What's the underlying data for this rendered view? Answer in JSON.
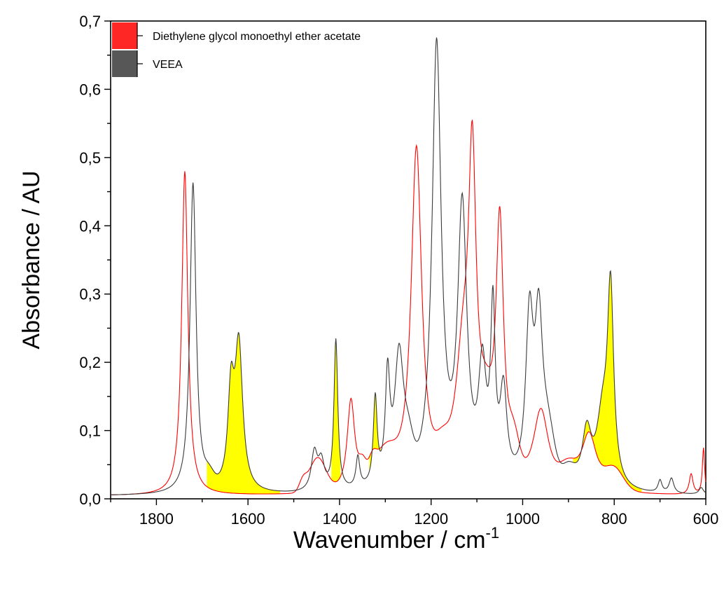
{
  "chart_data": {
    "type": "line",
    "title": "",
    "xlabel": "Wavenumber / cm",
    "xlabel_superscript": "-1",
    "ylabel": "Absorbance / AU",
    "xlim": [
      1900,
      600
    ],
    "x_reversed": true,
    "ylim": [
      0,
      0.7
    ],
    "x_ticks": [
      1800,
      1600,
      1400,
      1200,
      1000,
      800,
      600
    ],
    "x_tick_labels": [
      "1800",
      "1600",
      "1400",
      "1200",
      "1000",
      "800",
      "600"
    ],
    "y_ticks": [
      0,
      0.1,
      0.2,
      0.3,
      0.4,
      0.5,
      0.6,
      0.7
    ],
    "y_tick_labels": [
      "0,0",
      "0,1",
      "0,2",
      "0,3",
      "0,4",
      "0,5",
      "0,6",
      "0,7"
    ],
    "grid": false,
    "legend_position": "top-left",
    "fill_color": "#ffff00",
    "series": [
      {
        "name": "Diethylene glycol monoethyl ether acetate",
        "color": "#ff0000",
        "peaks": [
          {
            "center": 1738,
            "height": 0.475,
            "width": 8,
            "shape": "l"
          },
          {
            "center": 1448,
            "height": 0.05,
            "width": 18,
            "shape": "g"
          },
          {
            "center": 1480,
            "height": 0.015,
            "width": 8,
            "shape": "g"
          },
          {
            "center": 1375,
            "height": 0.135,
            "width": 10,
            "shape": "l"
          },
          {
            "center": 1350,
            "height": 0.025,
            "width": 8,
            "shape": "g"
          },
          {
            "center": 1328,
            "height": 0.02,
            "width": 8,
            "shape": "g"
          },
          {
            "center": 1300,
            "height": 0.05,
            "width": 25,
            "shape": "g"
          },
          {
            "center": 1232,
            "height": 0.5,
            "width": 14,
            "shape": "l"
          },
          {
            "center": 1175,
            "height": 0.03,
            "width": 15,
            "shape": "g"
          },
          {
            "center": 1130,
            "height": 0.18,
            "width": 20,
            "shape": "l"
          },
          {
            "center": 1110,
            "height": 0.43,
            "width": 10,
            "shape": "l"
          },
          {
            "center": 1080,
            "height": 0.08,
            "width": 15,
            "shape": "g"
          },
          {
            "center": 1050,
            "height": 0.38,
            "width": 10,
            "shape": "l"
          },
          {
            "center": 1020,
            "height": 0.05,
            "width": 12,
            "shape": "g"
          },
          {
            "center": 960,
            "height": 0.115,
            "width": 20,
            "shape": "l"
          },
          {
            "center": 900,
            "height": 0.025,
            "width": 18,
            "shape": "g"
          },
          {
            "center": 855,
            "height": 0.085,
            "width": 20,
            "shape": "l"
          },
          {
            "center": 800,
            "height": 0.03,
            "width": 20,
            "shape": "g"
          },
          {
            "center": 632,
            "height": 0.03,
            "width": 5,
            "shape": "l"
          },
          {
            "center": 605,
            "height": 0.068,
            "width": 3,
            "shape": "l"
          }
        ]
      },
      {
        "name": "VEEA",
        "color": "#3a3a3a",
        "peaks": [
          {
            "center": 1720,
            "height": 0.455,
            "width": 8,
            "shape": "l"
          },
          {
            "center": 1685,
            "height": 0.015,
            "width": 10,
            "shape": "g"
          },
          {
            "center": 1637,
            "height": 0.135,
            "width": 8,
            "shape": "l"
          },
          {
            "center": 1620,
            "height": 0.21,
            "width": 10,
            "shape": "l"
          },
          {
            "center": 1455,
            "height": 0.055,
            "width": 8,
            "shape": "l"
          },
          {
            "center": 1440,
            "height": 0.04,
            "width": 8,
            "shape": "l"
          },
          {
            "center": 1408,
            "height": 0.22,
            "width": 5,
            "shape": "l"
          },
          {
            "center": 1360,
            "height": 0.045,
            "width": 5,
            "shape": "l"
          },
          {
            "center": 1322,
            "height": 0.125,
            "width": 5,
            "shape": "l"
          },
          {
            "center": 1295,
            "height": 0.15,
            "width": 6,
            "shape": "l"
          },
          {
            "center": 1270,
            "height": 0.19,
            "width": 12,
            "shape": "l"
          },
          {
            "center": 1250,
            "height": 0.04,
            "width": 10,
            "shape": "g"
          },
          {
            "center": 1188,
            "height": 0.645,
            "width": 12,
            "shape": "l"
          },
          {
            "center": 1132,
            "height": 0.4,
            "width": 12,
            "shape": "l"
          },
          {
            "center": 1088,
            "height": 0.16,
            "width": 10,
            "shape": "l"
          },
          {
            "center": 1065,
            "height": 0.24,
            "width": 6,
            "shape": "l"
          },
          {
            "center": 1042,
            "height": 0.13,
            "width": 9,
            "shape": "l"
          },
          {
            "center": 985,
            "height": 0.24,
            "width": 10,
            "shape": "l"
          },
          {
            "center": 965,
            "height": 0.22,
            "width": 10,
            "shape": "l"
          },
          {
            "center": 945,
            "height": 0.07,
            "width": 14,
            "shape": "g"
          },
          {
            "center": 900,
            "height": 0.025,
            "width": 15,
            "shape": "g"
          },
          {
            "center": 860,
            "height": 0.08,
            "width": 12,
            "shape": "l"
          },
          {
            "center": 825,
            "height": 0.1,
            "width": 16,
            "shape": "l"
          },
          {
            "center": 808,
            "height": 0.275,
            "width": 8,
            "shape": "l"
          },
          {
            "center": 700,
            "height": 0.018,
            "width": 5,
            "shape": "l"
          },
          {
            "center": 675,
            "height": 0.022,
            "width": 6,
            "shape": "l"
          },
          {
            "center": 610,
            "height": 0.01,
            "width": 6,
            "shape": "l"
          }
        ]
      }
    ],
    "filled_regions": [
      [
        1690,
        1530
      ],
      [
        1418,
        1398
      ],
      [
        1335,
        1310
      ],
      [
        890,
        740
      ]
    ]
  }
}
